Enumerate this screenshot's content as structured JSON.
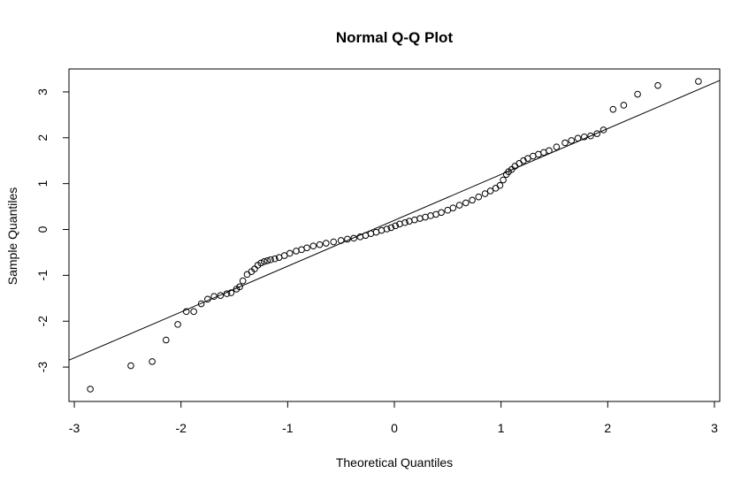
{
  "chart_data": {
    "type": "scatter",
    "title": "Normal Q-Q Plot",
    "xlabel": "Theoretical Quantiles",
    "ylabel": "Sample Quantiles",
    "xlim": [
      -3.05,
      3.05
    ],
    "ylim": [
      -3.75,
      3.5
    ],
    "x_ticks": [
      -3,
      -2,
      -1,
      0,
      1,
      2,
      3
    ],
    "y_ticks": [
      -3,
      -2,
      -1,
      0,
      1,
      2,
      3
    ],
    "reference_line": {
      "intercept": 0.2,
      "slope": 1.0
    },
    "marker": "open-circle",
    "series": [
      {
        "name": "sample",
        "x": [
          -2.85,
          -2.47,
          -2.27,
          -2.14,
          -2.03,
          -1.95,
          -1.88,
          -1.81,
          -1.75,
          -1.69,
          -1.63,
          -1.57,
          -1.53,
          -1.48,
          -1.45,
          -1.42,
          -1.38,
          -1.34,
          -1.31,
          -1.28,
          -1.25,
          -1.22,
          -1.19,
          -1.16,
          -1.12,
          -1.08,
          -1.03,
          -0.98,
          -0.92,
          -0.87,
          -0.82,
          -0.76,
          -0.7,
          -0.64,
          -0.57,
          -0.5,
          -0.44,
          -0.38,
          -0.32,
          -0.27,
          -0.22,
          -0.17,
          -0.12,
          -0.07,
          -0.03,
          0.01,
          0.05,
          0.1,
          0.14,
          0.19,
          0.24,
          0.29,
          0.34,
          0.39,
          0.44,
          0.5,
          0.55,
          0.61,
          0.67,
          0.73,
          0.79,
          0.85,
          0.9,
          0.95,
          0.99,
          1.02,
          1.05,
          1.07,
          1.1,
          1.13,
          1.17,
          1.21,
          1.25,
          1.3,
          1.35,
          1.4,
          1.45,
          1.52,
          1.6,
          1.66,
          1.72,
          1.78,
          1.84,
          1.9,
          1.96,
          2.05,
          2.15,
          2.28,
          2.47,
          2.85
        ],
        "y": [
          -3.48,
          -2.97,
          -2.88,
          -2.41,
          -2.07,
          -1.79,
          -1.79,
          -1.62,
          -1.52,
          -1.46,
          -1.44,
          -1.4,
          -1.38,
          -1.3,
          -1.25,
          -1.12,
          -0.98,
          -0.92,
          -0.86,
          -0.78,
          -0.73,
          -0.7,
          -0.68,
          -0.66,
          -0.64,
          -0.61,
          -0.57,
          -0.52,
          -0.47,
          -0.44,
          -0.4,
          -0.36,
          -0.33,
          -0.3,
          -0.27,
          -0.24,
          -0.21,
          -0.19,
          -0.16,
          -0.13,
          -0.09,
          -0.06,
          -0.02,
          0.01,
          0.04,
          0.08,
          0.12,
          0.15,
          0.18,
          0.21,
          0.24,
          0.27,
          0.3,
          0.33,
          0.37,
          0.42,
          0.47,
          0.53,
          0.58,
          0.64,
          0.71,
          0.78,
          0.84,
          0.9,
          0.96,
          1.08,
          1.2,
          1.26,
          1.31,
          1.38,
          1.44,
          1.5,
          1.55,
          1.6,
          1.64,
          1.68,
          1.72,
          1.8,
          1.89,
          1.94,
          1.99,
          2.02,
          2.04,
          2.09,
          2.17,
          2.62,
          2.71,
          2.95,
          3.14,
          3.23
        ]
      }
    ]
  }
}
